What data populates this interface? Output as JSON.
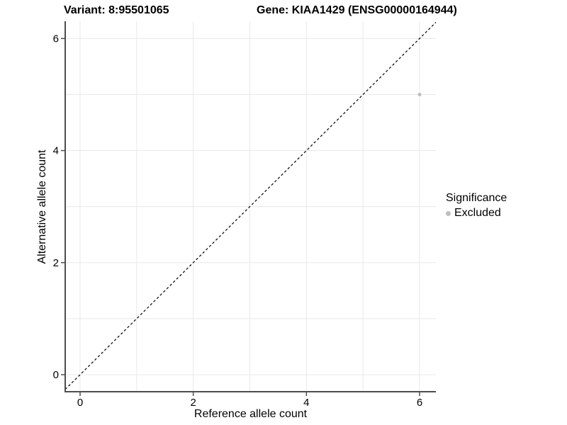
{
  "chart_data": {
    "type": "scatter",
    "title_left": "Variant: 8:95501065",
    "title_right": "Gene: KIAA1429 (ENSG00000164944)",
    "xlabel": "Reference allele count",
    "ylabel": "Alternative allele count",
    "xlim": [
      -0.263,
      6.288
    ],
    "ylim": [
      -0.304,
      6.308
    ],
    "x_ticks": [
      0,
      2,
      4,
      6
    ],
    "y_ticks": [
      0,
      2,
      4,
      6
    ],
    "grid_lines_x": [
      0,
      1,
      2,
      3,
      4,
      5,
      6
    ],
    "grid_lines_y": [
      0,
      1,
      2,
      3,
      4,
      5,
      6
    ],
    "points": [
      {
        "x": 6,
        "y": 5,
        "series": "Excluded"
      }
    ],
    "reference_line": {
      "slope": 1,
      "intercept": 0,
      "style": "dashed"
    },
    "legend": {
      "title": "Significance",
      "position": "right",
      "items": [
        {
          "label": "Excluded",
          "color": "#bebebe"
        }
      ]
    },
    "colors": {
      "point": "#bebebe",
      "grid": "#e8e8e8",
      "axis": "#4d4d4d",
      "reference_line": "#000000",
      "text": "#000000"
    },
    "grid": "on"
  }
}
